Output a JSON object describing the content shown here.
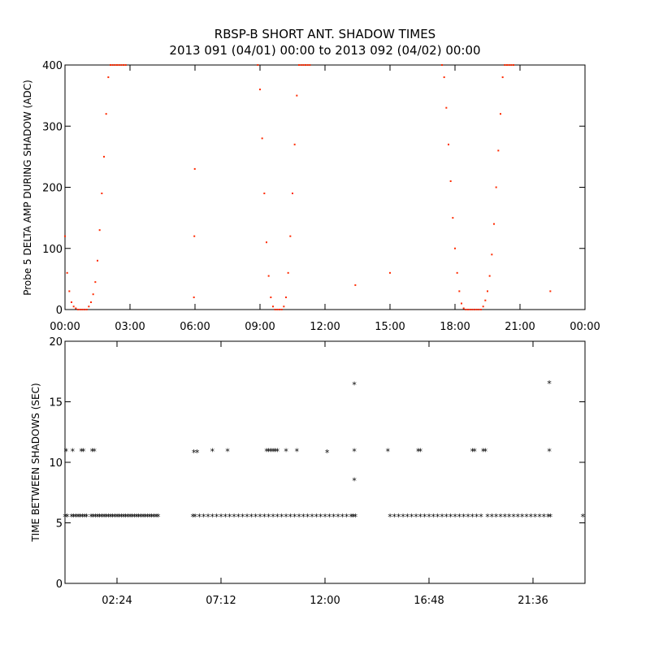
{
  "figure": {
    "title_line1": "RBSP-B SHORT ANT. SHADOW TIMES",
    "title_line2": "2013 091 (04/01) 00:00 to 2013 092 (04/02) 00:00"
  },
  "colors": {
    "shadow_points": "#ff2a00",
    "gap_points": "#000000"
  },
  "chart_data": [
    {
      "type": "scatter",
      "ylabel": "Probe 5 DELTA AMP DURING SHADOW (ADC)",
      "xlabel": "",
      "xlim_hours": [
        0,
        24
      ],
      "ylim": [
        0,
        400
      ],
      "x_ticks": [
        "00:00",
        "03:00",
        "06:00",
        "09:00",
        "12:00",
        "15:00",
        "18:00",
        "21:00",
        "00:00"
      ],
      "y_ticks": [
        "0",
        "100",
        "200",
        "300",
        "400"
      ],
      "marker": "dot",
      "series": [
        {
          "x": [
            0.0,
            0.1,
            0.2,
            0.3,
            0.4,
            0.5,
            0.6,
            0.7,
            0.8,
            0.9,
            1.0,
            1.1,
            1.2,
            1.3,
            1.4,
            1.5,
            1.6,
            1.7,
            1.8,
            1.9,
            2.0,
            2.1,
            2.2,
            2.3,
            2.4,
            2.5,
            2.6,
            2.7,
            2.8,
            5.95,
            5.97,
            5.99,
            8.9,
            9.0,
            9.1,
            9.2,
            9.3,
            9.4,
            9.5,
            9.6,
            9.7,
            9.8,
            9.9,
            10.0,
            10.1,
            10.2,
            10.3,
            10.4,
            10.5,
            10.6,
            10.7,
            10.8,
            10.9,
            11.0,
            11.1,
            11.2,
            11.3,
            13.4,
            15.0,
            17.4,
            17.5,
            17.6,
            17.7,
            17.8,
            17.9,
            18.0,
            18.1,
            18.2,
            18.3,
            18.4,
            18.5,
            18.6,
            18.7,
            18.8,
            18.9,
            19.0,
            19.1,
            19.2,
            19.3,
            19.4,
            19.5,
            19.6,
            19.7,
            19.8,
            19.9,
            20.0,
            20.1,
            20.2,
            20.3,
            20.4,
            20.5,
            20.6,
            20.7,
            22.4
          ],
          "y": [
            120,
            60,
            30,
            12,
            5,
            2,
            0,
            0,
            0,
            0,
            0,
            5,
            12,
            25,
            45,
            80,
            130,
            190,
            250,
            320,
            380,
            400,
            400,
            400,
            400,
            400,
            400,
            400,
            400,
            20,
            120,
            230,
            400,
            360,
            280,
            190,
            110,
            55,
            20,
            5,
            0,
            0,
            0,
            0,
            5,
            20,
            60,
            120,
            190,
            270,
            350,
            400,
            400,
            400,
            400,
            400,
            400,
            40,
            60,
            400,
            380,
            330,
            270,
            210,
            150,
            100,
            60,
            30,
            10,
            2,
            0,
            0,
            0,
            0,
            0,
            0,
            0,
            0,
            5,
            15,
            30,
            55,
            90,
            140,
            200,
            260,
            320,
            380,
            400,
            400,
            400,
            400,
            400,
            30
          ]
        }
      ]
    },
    {
      "type": "scatter",
      "ylabel": "TIME BETWEEN SHADOWS (SEC)",
      "xlabel": "",
      "xlim_hours": [
        0,
        24
      ],
      "ylim": [
        0,
        20
      ],
      "x_ticks": [
        "02:24",
        "07:12",
        "12:00",
        "16:48",
        "21:36"
      ],
      "x_tick_hours": [
        2.4,
        7.2,
        12.0,
        16.8,
        21.6
      ],
      "y_ticks": [
        "0",
        "5",
        "10",
        "15",
        "20"
      ],
      "marker": "asterisk",
      "series": [
        {
          "x": [
            0.0,
            0.1,
            0.3,
            0.4,
            0.5,
            0.6,
            0.7,
            0.8,
            0.9,
            1.0,
            1.2,
            1.3,
            1.4,
            1.5,
            1.6,
            1.7,
            1.8,
            1.9,
            2.0,
            2.1,
            2.2,
            2.3,
            2.4,
            2.5,
            2.6,
            2.7,
            2.8,
            2.9,
            3.0,
            3.1,
            3.2,
            3.3,
            3.4,
            3.5,
            3.6,
            3.7,
            3.8,
            3.9,
            4.0,
            4.1,
            4.2,
            4.3,
            5.9,
            6.0,
            6.2,
            6.4,
            6.6,
            6.8,
            7.0,
            7.2,
            7.4,
            7.6,
            7.8,
            8.0,
            8.2,
            8.4,
            8.6,
            8.8,
            9.0,
            9.2,
            9.4,
            9.6,
            9.8,
            10.0,
            10.2,
            10.4,
            10.6,
            10.8,
            11.0,
            11.2,
            11.4,
            11.6,
            11.8,
            12.0,
            12.2,
            12.4,
            12.6,
            12.8,
            13.0,
            13.2,
            13.3,
            13.4,
            15.0,
            15.2,
            15.4,
            15.6,
            15.8,
            16.0,
            16.2,
            16.4,
            16.6,
            16.8,
            17.0,
            17.2,
            17.4,
            17.6,
            17.8,
            18.0,
            18.2,
            18.4,
            18.6,
            18.8,
            19.0,
            19.2,
            19.5,
            19.7,
            19.9,
            20.1,
            20.3,
            20.5,
            20.7,
            20.9,
            21.1,
            21.3,
            21.5,
            21.7,
            21.9,
            22.1,
            22.3,
            22.4,
            23.9,
            0.05,
            0.35,
            0.75,
            0.85,
            1.25,
            1.35,
            5.95,
            6.1,
            6.8,
            7.5,
            9.3,
            9.4,
            9.5,
            9.6,
            9.7,
            9.8,
            10.2,
            10.7,
            12.1,
            13.35,
            13.35,
            13.35,
            14.9,
            16.3,
            16.4,
            18.8,
            18.9,
            19.3,
            19.4,
            22.35,
            22.35
          ],
          "y": [
            5.5,
            5.5,
            5.5,
            5.5,
            5.5,
            5.5,
            5.5,
            5.5,
            5.5,
            5.5,
            5.5,
            5.5,
            5.5,
            5.5,
            5.5,
            5.5,
            5.5,
            5.5,
            5.5,
            5.5,
            5.5,
            5.5,
            5.5,
            5.5,
            5.5,
            5.5,
            5.5,
            5.5,
            5.5,
            5.5,
            5.5,
            5.5,
            5.5,
            5.5,
            5.5,
            5.5,
            5.5,
            5.5,
            5.5,
            5.5,
            5.5,
            5.5,
            5.5,
            5.5,
            5.5,
            5.5,
            5.5,
            5.5,
            5.5,
            5.5,
            5.5,
            5.5,
            5.5,
            5.5,
            5.5,
            5.5,
            5.5,
            5.5,
            5.5,
            5.5,
            5.5,
            5.5,
            5.5,
            5.5,
            5.5,
            5.5,
            5.5,
            5.5,
            5.5,
            5.5,
            5.5,
            5.5,
            5.5,
            5.5,
            5.5,
            5.5,
            5.5,
            5.5,
            5.5,
            5.5,
            5.5,
            5.5,
            5.5,
            5.5,
            5.5,
            5.5,
            5.5,
            5.5,
            5.5,
            5.5,
            5.5,
            5.5,
            5.5,
            5.5,
            5.5,
            5.5,
            5.5,
            5.5,
            5.5,
            5.5,
            5.5,
            5.5,
            5.5,
            5.5,
            5.5,
            5.5,
            5.5,
            5.5,
            5.5,
            5.5,
            5.5,
            5.5,
            5.5,
            5.5,
            5.5,
            5.5,
            5.5,
            5.5,
            5.5,
            5.5,
            5.5,
            10.9,
            10.9,
            10.9,
            10.9,
            10.9,
            10.9,
            10.8,
            10.8,
            10.9,
            10.9,
            10.9,
            10.9,
            10.9,
            10.9,
            10.9,
            10.9,
            10.9,
            10.9,
            10.8,
            16.4,
            10.9,
            8.5,
            10.9,
            10.9,
            10.9,
            10.9,
            10.9,
            10.9,
            10.9,
            16.5,
            10.9
          ]
        }
      ]
    }
  ]
}
